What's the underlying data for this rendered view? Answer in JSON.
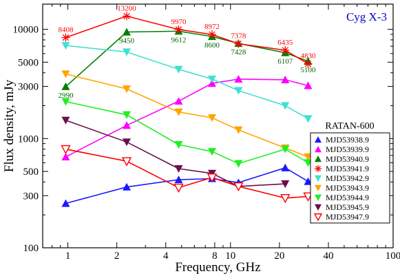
{
  "chart_data": {
    "type": "line",
    "title": "Cyg X-3",
    "xlabel": "Frequency, GHz",
    "ylabel": "Flux density, mJy",
    "xscale": "log",
    "yscale": "log",
    "xlim": [
      0.7,
      100
    ],
    "ylim": [
      100,
      17000
    ],
    "xticks": [
      {
        "value": 1,
        "label": "1"
      },
      {
        "value": 2,
        "label": "2"
      },
      {
        "value": 4,
        "label": "4"
      },
      {
        "value": 8,
        "label": "8"
      },
      {
        "value": 10,
        "label": "10"
      },
      {
        "value": 20,
        "label": "20"
      },
      {
        "value": 40,
        "label": "40"
      },
      {
        "value": 100,
        "label": "100"
      }
    ],
    "yticks": [
      {
        "value": 100,
        "label": "100"
      },
      {
        "value": 300,
        "label": "300"
      },
      {
        "value": 500,
        "label": "500"
      },
      {
        "value": 1000,
        "label": "1000"
      },
      {
        "value": 3000,
        "label": "3000"
      },
      {
        "value": 5000,
        "label": "5000"
      },
      {
        "value": 10000,
        "label": "10000"
      }
    ],
    "grid": false,
    "legend": {
      "title": "RATAN-600",
      "position": "right"
    },
    "series": [
      {
        "name": "MJD53938.9",
        "color": "#1a1aff",
        "marker": "triangle-up",
        "x": [
          0.97,
          2.3,
          4.8,
          7.7,
          11.2,
          21.7,
          30
        ],
        "y": [
          255,
          360,
          420,
          430,
          395,
          540,
          405
        ]
      },
      {
        "name": "MJD53939.9",
        "color": "#ff00ff",
        "marker": "triangle-up",
        "x": [
          0.97,
          2.3,
          4.8,
          7.7,
          11.2,
          21.7,
          30
        ],
        "y": [
          680,
          1320,
          2200,
          3200,
          3500,
          3450,
          3050
        ]
      },
      {
        "name": "MJD53940.9",
        "color": "#008000",
        "marker": "triangle-up",
        "x": [
          0.97,
          2.3,
          4.8,
          7.7,
          11.2,
          21.7,
          30
        ],
        "y": [
          2990,
          9450,
          9612,
          8600,
          7428,
          6107,
          5100
        ]
      },
      {
        "name": "MJD53941.9",
        "color": "#ff0000",
        "marker": "asterisk",
        "x": [
          0.97,
          2.3,
          4.8,
          7.7,
          11.2,
          21.7,
          30
        ],
        "y": [
          8408,
          13200,
          9970,
          8972,
          7378,
          6435,
          4830
        ]
      },
      {
        "name": "MJD53942.9",
        "color": "#40e0d0",
        "marker": "triangle-down",
        "x": [
          0.97,
          2.3,
          4.8,
          7.7,
          11.2,
          21.7,
          30
        ],
        "y": [
          7100,
          6200,
          4300,
          3500,
          2750,
          2000,
          1520
        ]
      },
      {
        "name": "MJD53943.9",
        "color": "#ffa500",
        "marker": "triangle-down",
        "x": [
          0.97,
          2.3,
          4.8,
          7.7,
          11.2,
          21.7,
          30
        ],
        "y": [
          3900,
          2850,
          1750,
          1550,
          1200,
          820,
          680
        ]
      },
      {
        "name": "MJD53944.9",
        "color": "#22ee22",
        "marker": "triangle-down",
        "x": [
          0.97,
          2.3,
          4.8,
          7.7,
          11.2,
          21.7,
          30
        ],
        "y": [
          2180,
          1650,
          880,
          760,
          590,
          800,
          600
        ]
      },
      {
        "name": "MJD53945.9",
        "color": "#6b0f4a",
        "marker": "triangle-down",
        "x": [
          0.97,
          2.3,
          4.8,
          7.7,
          11.2,
          21.7
        ],
        "y": [
          1470,
          930,
          530,
          480,
          365,
          385
        ]
      },
      {
        "name": "MJD53947.9",
        "color": "#ff0000",
        "marker": "triangle-down-open",
        "x": [
          0.97,
          2.3,
          4.8,
          7.7,
          11.2,
          21.7,
          30
        ],
        "y": [
          800,
          620,
          355,
          440,
          365,
          285,
          295
        ]
      }
    ],
    "annotations": [
      {
        "text": "8408",
        "series": "MJD53941.9",
        "color": "#ff0000",
        "pos": "above",
        "x": 0.97,
        "y": 8408
      },
      {
        "text": "13200",
        "series": "MJD53941.9",
        "color": "#ff0000",
        "pos": "above",
        "x": 2.3,
        "y": 13200
      },
      {
        "text": "9970",
        "series": "MJD53941.9",
        "color": "#ff0000",
        "pos": "above",
        "x": 4.8,
        "y": 9970
      },
      {
        "text": "8972",
        "series": "MJD53941.9",
        "color": "#ff0000",
        "pos": "above",
        "x": 7.7,
        "y": 8972
      },
      {
        "text": "7378",
        "series": "MJD53941.9",
        "color": "#ff0000",
        "pos": "above",
        "x": 11.2,
        "y": 7378
      },
      {
        "text": "6435",
        "series": "MJD53941.9",
        "color": "#ff0000",
        "pos": "above",
        "x": 21.7,
        "y": 6435
      },
      {
        "text": "4830",
        "series": "MJD53941.9",
        "color": "#ff0000",
        "pos": "above",
        "x": 30,
        "y": 4830
      },
      {
        "text": "2990",
        "series": "MJD53940.9",
        "color": "#006400",
        "pos": "below",
        "x": 0.97,
        "y": 2990
      },
      {
        "text": "9450",
        "series": "MJD53940.9",
        "color": "#006400",
        "pos": "below",
        "x": 2.3,
        "y": 9450
      },
      {
        "text": "9612",
        "series": "MJD53940.9",
        "color": "#006400",
        "pos": "below",
        "x": 4.8,
        "y": 9612
      },
      {
        "text": "8600",
        "series": "MJD53940.9",
        "color": "#006400",
        "pos": "below",
        "x": 7.7,
        "y": 8600
      },
      {
        "text": "7428",
        "series": "MJD53940.9",
        "color": "#006400",
        "pos": "below",
        "x": 11.2,
        "y": 7428
      },
      {
        "text": "6107",
        "series": "MJD53940.9",
        "color": "#006400",
        "pos": "below",
        "x": 21.7,
        "y": 6107
      },
      {
        "text": "5100",
        "series": "MJD53940.9",
        "color": "#006400",
        "pos": "below",
        "x": 30,
        "y": 5100
      }
    ]
  }
}
